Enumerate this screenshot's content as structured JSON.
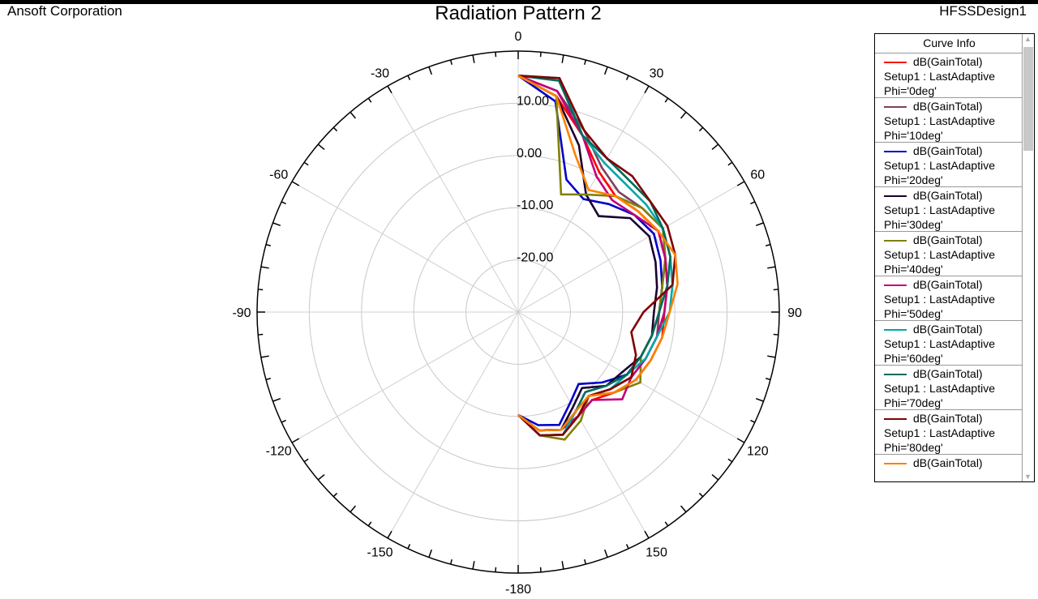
{
  "header": {
    "company": "Ansoft Corporation",
    "title": "Radiation Pattern 2",
    "design": "HFSSDesign1"
  },
  "legend": {
    "title": "Curve Info",
    "entries": [
      {
        "quantity": "dB(GainTotal)",
        "setup": "Setup1 : LastAdaptive",
        "phi": "Phi='0deg'",
        "color": "#ff0000"
      },
      {
        "quantity": "dB(GainTotal)",
        "setup": "Setup1 : LastAdaptive",
        "phi": "Phi='10deg'",
        "color": "#80405f"
      },
      {
        "quantity": "dB(GainTotal)",
        "setup": "Setup1 : LastAdaptive",
        "phi": "Phi='20deg'",
        "color": "#0000c8"
      },
      {
        "quantity": "dB(GainTotal)",
        "setup": "Setup1 : LastAdaptive",
        "phi": "Phi='30deg'",
        "color": "#1a0030"
      },
      {
        "quantity": "dB(GainTotal)",
        "setup": "Setup1 : LastAdaptive",
        "phi": "Phi='40deg'",
        "color": "#808000"
      },
      {
        "quantity": "dB(GainTotal)",
        "setup": "Setup1 : LastAdaptive",
        "phi": "Phi='50deg'",
        "color": "#c0007a"
      },
      {
        "quantity": "dB(GainTotal)",
        "setup": "Setup1 : LastAdaptive",
        "phi": "Phi='60deg'",
        "color": "#00a8a8"
      },
      {
        "quantity": "dB(GainTotal)",
        "setup": "Setup1 : LastAdaptive",
        "phi": "Phi='70deg'",
        "color": "#006a5a"
      },
      {
        "quantity": "dB(GainTotal)",
        "setup": "Setup1 : LastAdaptive",
        "phi": "Phi='80deg'",
        "color": "#800000"
      },
      {
        "quantity": "dB(GainTotal)",
        "setup": "",
        "phi": "",
        "color": "#ff8000"
      }
    ]
  },
  "chart_data": {
    "type": "polar-line",
    "title": "Radiation Pattern 2",
    "angle_unit": "deg (Theta)",
    "angle_ticks": [
      "0",
      "30",
      "60",
      "90",
      "120",
      "150",
      "-180",
      "-150",
      "-120",
      "-90",
      "-60",
      "-30"
    ],
    "angle_tick_values": [
      0,
      30,
      60,
      90,
      120,
      150,
      180,
      -150,
      -120,
      -90,
      -60,
      -30
    ],
    "radial_range": [
      -30,
      20
    ],
    "radial_ticks": [
      {
        "value": 10,
        "label": "10.00"
      },
      {
        "value": 0,
        "label": "0.00"
      },
      {
        "value": -10,
        "label": "-10.00"
      },
      {
        "value": -20,
        "label": "-20.00"
      }
    ],
    "grid": true,
    "theta": [
      0,
      10,
      20,
      30,
      40,
      50,
      60,
      70,
      80,
      90,
      100,
      110,
      120,
      130,
      140,
      150,
      160,
      170,
      180
    ],
    "series": [
      {
        "name": "Phi='0deg'",
        "color": "#ff0000",
        "values": [
          15.3,
          12,
          6,
          1,
          -1,
          0,
          1,
          0,
          -1,
          -2,
          -2,
          -3,
          -4,
          -6,
          -8,
          -7,
          -5,
          -6,
          -10.3
        ]
      },
      {
        "name": "Phi='10deg'",
        "color": "#80405f",
        "values": [
          15.3,
          13,
          7,
          2,
          0,
          1,
          2,
          0,
          -2,
          -3,
          -3,
          -4,
          -5,
          -7,
          -9,
          -8,
          -6,
          -7,
          -10.3
        ]
      },
      {
        "name": "Phi='20deg'",
        "color": "#0000c8",
        "values": [
          15.3,
          11,
          -3,
          -5,
          -3,
          -1,
          0,
          -1,
          -2,
          -3,
          -4,
          -5,
          -6,
          -9,
          -12,
          -10,
          -7,
          -8,
          -10.3
        ]
      },
      {
        "name": "Phi='30deg'",
        "color": "#1a0030",
        "values": [
          15.3,
          12,
          4,
          -4,
          -6,
          -2,
          -1,
          -2,
          -3,
          -4,
          -4,
          -5,
          -7,
          -8,
          -11,
          -9,
          -6,
          -7,
          -10.3
        ]
      },
      {
        "name": "Phi='40deg'",
        "color": "#808000",
        "values": [
          15.3,
          12,
          -6,
          -4,
          -1,
          1,
          2,
          0,
          -2,
          -3,
          -4,
          -5,
          -3,
          -6,
          -9,
          -6,
          -4,
          -6,
          -10.3
        ]
      },
      {
        "name": "Phi='50deg'",
        "color": "#c0007a",
        "values": [
          15.3,
          13,
          6,
          0,
          -2,
          -1,
          1,
          0,
          -1,
          -2,
          -3,
          -4,
          -5,
          -4,
          -8,
          -7,
          -6,
          -7,
          -10.3
        ]
      },
      {
        "name": "Phi='60deg'",
        "color": "#00a8a8",
        "values": [
          15.3,
          15.5,
          6,
          3,
          2,
          2,
          2,
          1,
          0,
          -1,
          -3,
          -4,
          -6,
          -7,
          -9,
          -8,
          -5,
          -6,
          -10.3
        ]
      },
      {
        "name": "Phi='70deg'",
        "color": "#006a5a",
        "values": [
          15.3,
          15,
          6,
          4,
          3,
          3,
          2,
          1,
          -1,
          -3,
          -4,
          -5,
          -6,
          -8,
          -10,
          -8,
          -6,
          -7,
          -10.3
        ]
      },
      {
        "name": "Phi='80deg'",
        "color": "#800000",
        "values": [
          15.3,
          15.5,
          7,
          4,
          4,
          3,
          3,
          2,
          0,
          -6,
          -8,
          -6,
          -5,
          -7,
          -9,
          -7,
          -5,
          -6,
          -10.3
        ]
      },
      {
        "name": "dB(GainTotal)",
        "color": "#ff8000",
        "values": [
          15.3,
          12,
          2,
          -3,
          -1,
          0,
          1,
          2,
          1,
          -1,
          -2,
          -3,
          -4,
          -6,
          -9,
          -8,
          -6,
          -7,
          -10.3
        ]
      }
    ]
  }
}
